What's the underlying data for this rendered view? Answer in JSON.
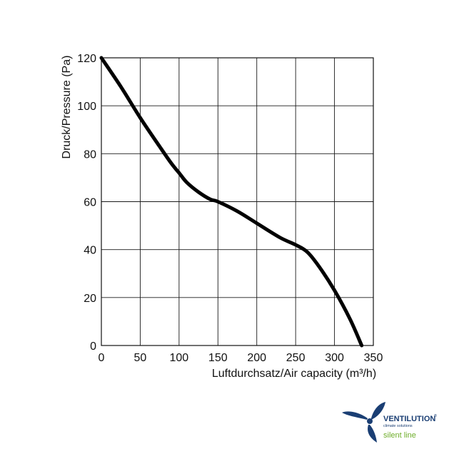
{
  "chart_data": {
    "type": "line",
    "xlabel": "Luftdurchsatz/Air capacity (m³/h)",
    "ylabel": "Druck/Pressure (Pa)",
    "xlim": [
      0,
      350
    ],
    "ylim": [
      0,
      120
    ],
    "x_ticks": [
      "0",
      "50",
      "100",
      "150",
      "200",
      "250",
      "300",
      "350"
    ],
    "y_ticks": [
      "0",
      "20",
      "40",
      "60",
      "80",
      "100",
      "120"
    ],
    "grid": true,
    "series": [
      {
        "x": [
          0,
          25,
          50,
          75,
          90,
          100,
          110,
          125,
          140,
          150,
          175,
          200,
          230,
          250,
          265,
          280,
          300,
          320,
          335
        ],
        "y": [
          120,
          108,
          95,
          83,
          76,
          72,
          68,
          64,
          61,
          60,
          56,
          51,
          45,
          42,
          39,
          33,
          23,
          11,
          0
        ]
      }
    ],
    "line_color": "#000000"
  },
  "brand": {
    "name": "VENTILUTION",
    "registered": "®",
    "tagline": "climate solutions",
    "line": "silent line",
    "primary_color": "#1a3e73",
    "secondary_color": "#6fae2b"
  }
}
